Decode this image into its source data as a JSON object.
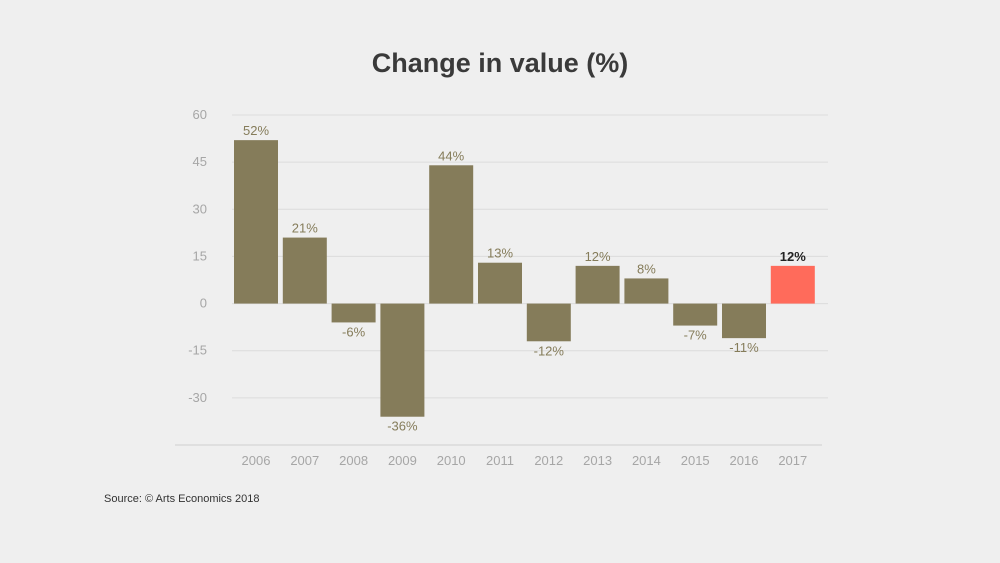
{
  "chart_data": {
    "type": "bar",
    "title": "Change in value (%)",
    "xlabel": "",
    "ylabel": "",
    "categories": [
      "2006",
      "2007",
      "2008",
      "2009",
      "2010",
      "2011",
      "2012",
      "2013",
      "2014",
      "2015",
      "2016",
      "2017"
    ],
    "values": [
      52,
      21,
      -6,
      -36,
      44,
      13,
      -12,
      12,
      8,
      -7,
      -11,
      12
    ],
    "data_labels": [
      "52%",
      "21%",
      "-6%",
      "-36%",
      "44%",
      "13%",
      "-12%",
      "12%",
      "8%",
      "-7%",
      "-11%",
      "12%"
    ],
    "highlight_index": 11,
    "ylim": [
      -45,
      60
    ],
    "yticks": [
      60,
      45,
      30,
      15,
      0,
      -15,
      -30
    ],
    "grid": true,
    "legend": "none",
    "colors": {
      "bar": "#857c5a",
      "highlight": "#ff6b5b",
      "label": "#857c5a",
      "highlight_label": "#222222",
      "grid": "#dcdcdc",
      "axis_text": "#a6a6a6"
    }
  },
  "source": "Source: © Arts Economics 2018"
}
